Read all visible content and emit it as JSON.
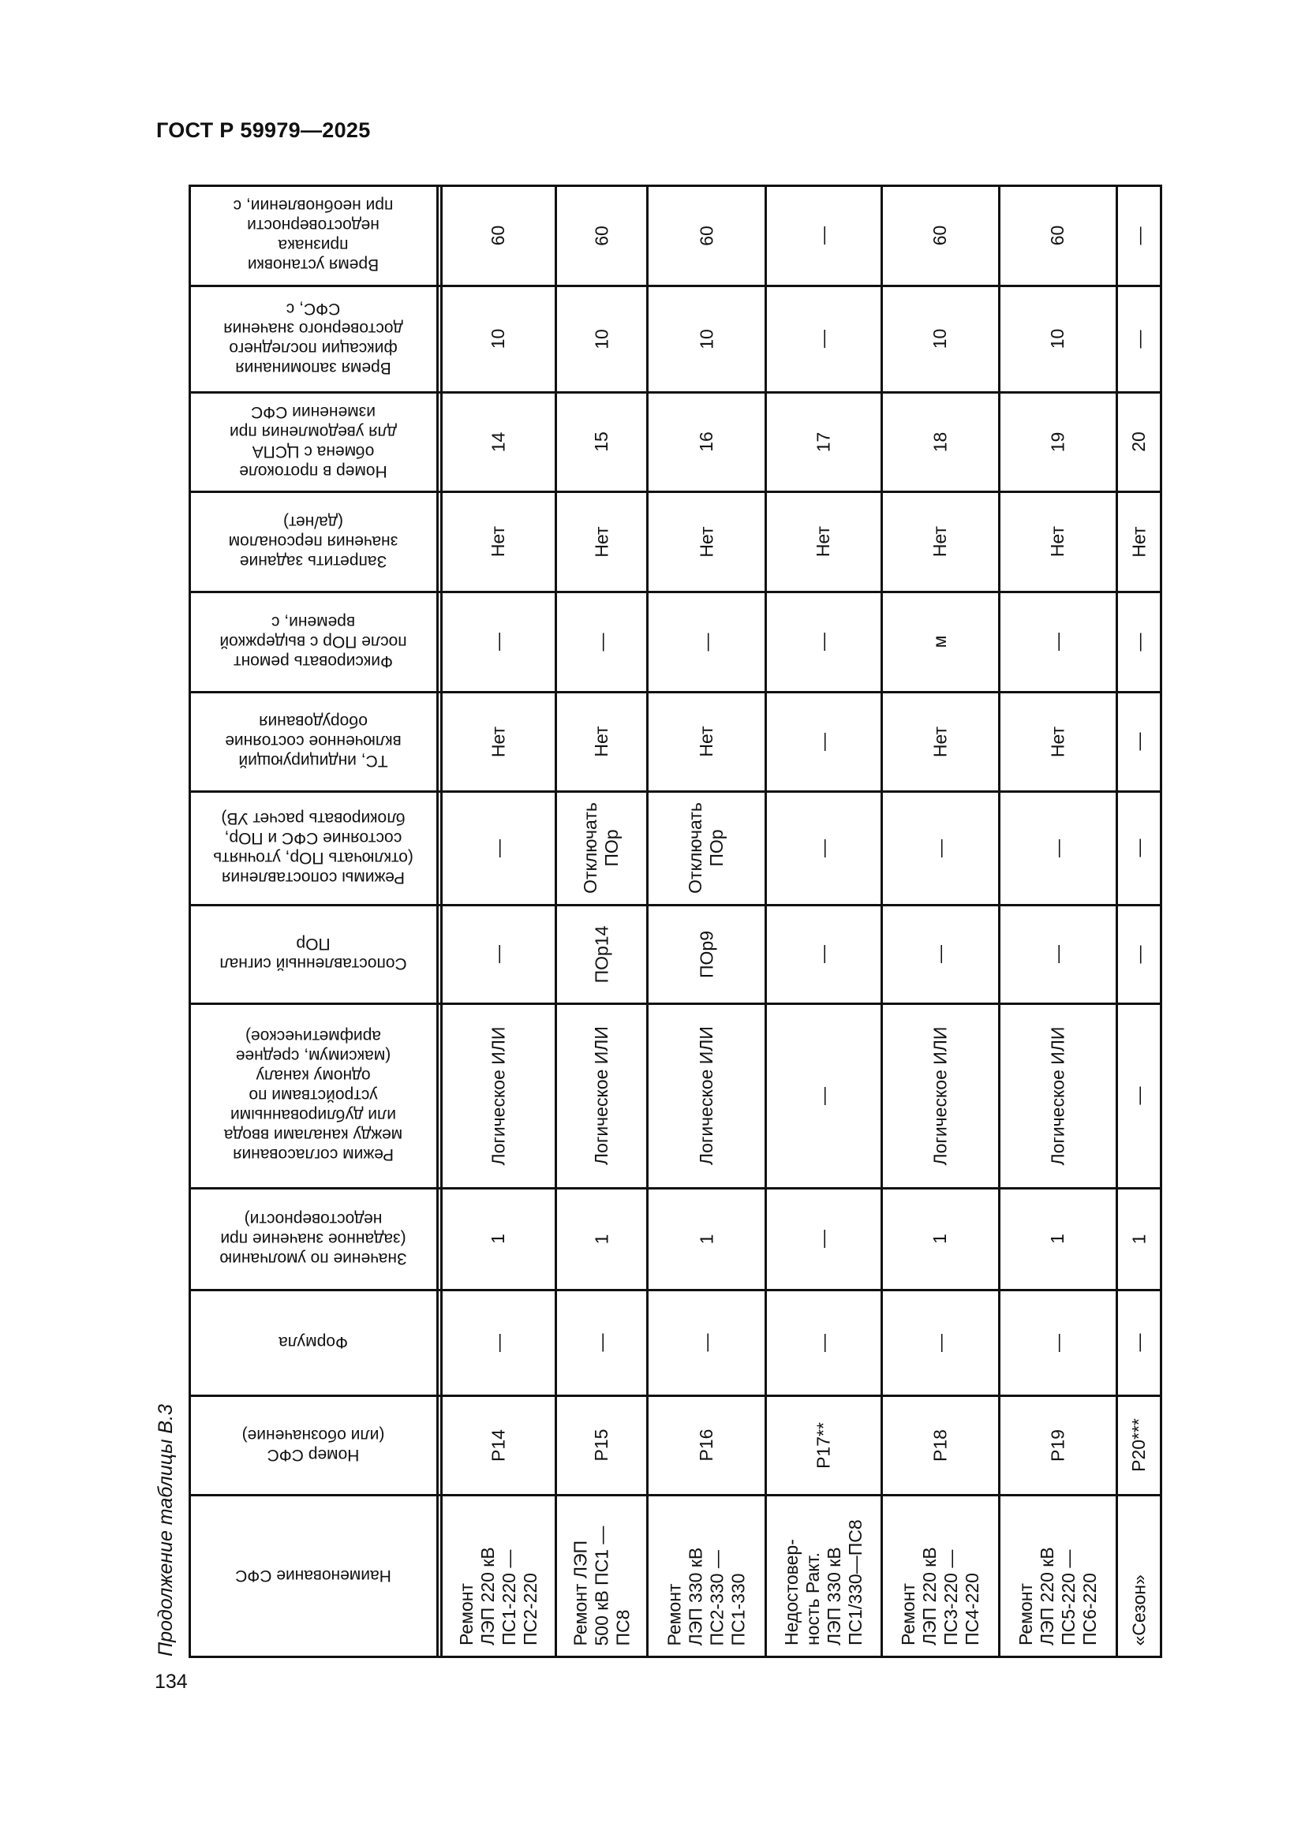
{
  "header": {
    "title": "ГОСТ Р 59979—2025"
  },
  "caption": "Продолжение таблицы В.3",
  "page_number": "134",
  "table": {
    "columns": [
      "Наименование СФС",
      "Номер СФС\n(или обозначение)",
      "Формула",
      "Значение по умолчанию\n(заданное значение при\nнедостоверности)",
      "Режим согласования\nмежду каналами ввода\nили дублированными\nустройствами по\nодному каналу\n(максимум, среднее\nарифметическое)",
      "Сопоставленный сигнал\nПОр",
      "Режимы сопоставления\n(отключать ПОр, уточнять\nсостояние СФС и ПОр,\nблокировать расчет УВ)",
      "ТС, индицирующий\nвключенное состояние\nоборудования",
      "Фиксировать ремонт\nпосле ПОр с выдержкой\nвремени, с",
      "Запретить задание\nзначения персоналом\n(да/нет)",
      "Номер в протоколе\nобмена с ЦСПА\nдля уведомления при\nизменении СФС",
      "Время запоминания\nфиксации последнего\nдостоверного значения\nСФС, с",
      "Время установки\nпризнака\nнедостоверности\nпри необновлении, с"
    ],
    "rows": [
      {
        "cells": [
          "Ремонт\nЛЭП 220 кВ\nПС1-220 —\nПС2-220",
          "P14",
          "—",
          "1",
          "Логическое ИЛИ",
          "—",
          "—",
          "Нет",
          "—",
          "Нет",
          "14",
          "10",
          "60"
        ]
      },
      {
        "cells": [
          "Ремонт ЛЭП\n500 кВ ПС1 —\nПС8",
          "P15",
          "—",
          "1",
          "Логическое ИЛИ",
          "ПОр14",
          "Отключать\nПОр",
          "Нет",
          "—",
          "Нет",
          "15",
          "10",
          "60"
        ]
      },
      {
        "cells": [
          "Ремонт\nЛЭП 330 кВ\nПС2-330 —\nПС1-330",
          "P16",
          "—",
          "1",
          "Логическое ИЛИ",
          "ПОр9",
          "Отключать\nПОр",
          "Нет",
          "—",
          "Нет",
          "16",
          "10",
          "60"
        ]
      },
      {
        "cells": [
          "Недостовер-\nность Ракт.\nЛЭП 330 кВ\nПС1/330—ПС8",
          "P17**",
          "—",
          "—",
          "—",
          "—",
          "—",
          "—",
          "—",
          "Нет",
          "17",
          "—",
          "—"
        ]
      },
      {
        "cells": [
          "Ремонт\nЛЭП 220 кВ\nПС3-220 —\nПС4-220",
          "P18",
          "—",
          "1",
          "Логическое ИЛИ",
          "—",
          "—",
          "Нет",
          "м",
          "Нет",
          "18",
          "10",
          "60"
        ]
      },
      {
        "cells": [
          "Ремонт\nЛЭП 220 кВ\nПС5-220 —\nПС6-220",
          "P19",
          "—",
          "1",
          "Логическое ИЛИ",
          "—",
          "—",
          "Нет",
          "—",
          "Нет",
          "19",
          "10",
          "60"
        ]
      },
      {
        "cells": [
          "«Сезон»",
          "P20***",
          "—",
          "1",
          "—",
          "—",
          "—",
          "—",
          "—",
          "Нет",
          "20",
          "—",
          "—"
        ]
      }
    ]
  }
}
